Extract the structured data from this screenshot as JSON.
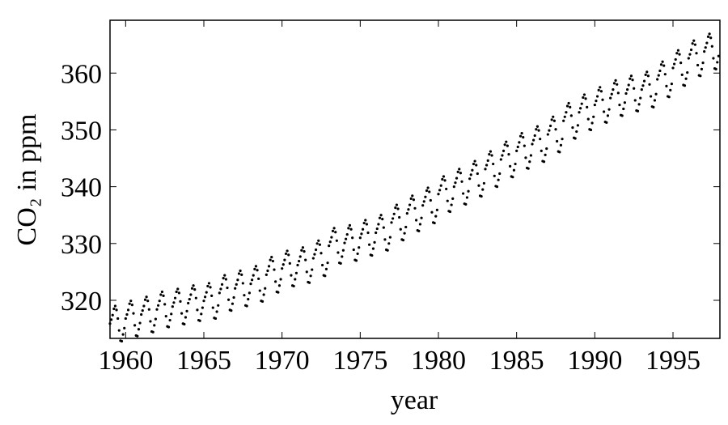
{
  "chart_data": {
    "type": "scatter",
    "xlabel": "year",
    "ylabel": "CO₂ in ppm",
    "color": "#000000",
    "xlim": [
      1959,
      1998
    ],
    "ylim": [
      313.3,
      369.3
    ],
    "xticks": [
      1960,
      1965,
      1970,
      1975,
      1980,
      1985,
      1990,
      1995
    ],
    "yticks": [
      320,
      330,
      340,
      350,
      360
    ],
    "x": [
      1959,
      1959.083,
      1959.167,
      1959.25,
      1959.333,
      1959.417,
      1959.5,
      1959.583,
      1959.667,
      1959.75,
      1959.833,
      1959.917,
      1960,
      1960.083,
      1960.167,
      1960.25,
      1960.333,
      1960.417,
      1960.5,
      1960.583,
      1960.667,
      1960.75,
      1960.833,
      1960.917,
      1961,
      1961.083,
      1961.167,
      1961.25,
      1961.333,
      1961.417,
      1961.5,
      1961.583,
      1961.667,
      1961.75,
      1961.833,
      1961.917,
      1962,
      1962.083,
      1962.167,
      1962.25,
      1962.333,
      1962.417,
      1962.5,
      1962.583,
      1962.667,
      1962.75,
      1962.833,
      1962.917,
      1963,
      1963.083,
      1963.167,
      1963.25,
      1963.333,
      1963.417,
      1963.5,
      1963.583,
      1963.667,
      1963.75,
      1963.833,
      1963.917,
      1964,
      1964.083,
      1964.167,
      1964.25,
      1964.333,
      1964.417,
      1964.5,
      1964.583,
      1964.667,
      1964.75,
      1964.833,
      1964.917,
      1965,
      1965.083,
      1965.167,
      1965.25,
      1965.333,
      1965.417,
      1965.5,
      1965.583,
      1965.667,
      1965.75,
      1965.833,
      1965.917,
      1966,
      1966.083,
      1966.167,
      1966.25,
      1966.333,
      1966.417,
      1966.5,
      1966.583,
      1966.667,
      1966.75,
      1966.833,
      1966.917,
      1967,
      1967.083,
      1967.167,
      1967.25,
      1967.333,
      1967.417,
      1967.5,
      1967.583,
      1967.667,
      1967.75,
      1967.833,
      1967.917,
      1968,
      1968.083,
      1968.167,
      1968.25,
      1968.333,
      1968.417,
      1968.5,
      1968.583,
      1968.667,
      1968.75,
      1968.833,
      1968.917,
      1969,
      1969.083,
      1969.167,
      1969.25,
      1969.333,
      1969.417,
      1969.5,
      1969.583,
      1969.667,
      1969.75,
      1969.833,
      1969.917,
      1970,
      1970.083,
      1970.167,
      1970.25,
      1970.333,
      1970.417,
      1970.5,
      1970.583,
      1970.667,
      1970.75,
      1970.833,
      1970.917,
      1971,
      1971.083,
      1971.167,
      1971.25,
      1971.333,
      1971.417,
      1971.5,
      1971.583,
      1971.667,
      1971.75,
      1971.833,
      1971.917,
      1972,
      1972.083,
      1972.167,
      1972.25,
      1972.333,
      1972.417,
      1972.5,
      1972.583,
      1972.667,
      1972.75,
      1972.833,
      1972.917,
      1973,
      1973.083,
      1973.167,
      1973.25,
      1973.333,
      1973.417,
      1973.5,
      1973.583,
      1973.667,
      1973.75,
      1973.833,
      1973.917,
      1974,
      1974.083,
      1974.167,
      1974.25,
      1974.333,
      1974.417,
      1974.5,
      1974.583,
      1974.667,
      1974.75,
      1974.833,
      1974.917,
      1975,
      1975.083,
      1975.167,
      1975.25,
      1975.333,
      1975.417,
      1975.5,
      1975.583,
      1975.667,
      1975.75,
      1975.833,
      1975.917,
      1976,
      1976.083,
      1976.167,
      1976.25,
      1976.333,
      1976.417,
      1976.5,
      1976.583,
      1976.667,
      1976.75,
      1976.833,
      1976.917,
      1977,
      1977.083,
      1977.167,
      1977.25,
      1977.333,
      1977.417,
      1977.5,
      1977.583,
      1977.667,
      1977.75,
      1977.833,
      1977.917,
      1978,
      1978.083,
      1978.167,
      1978.25,
      1978.333,
      1978.417,
      1978.5,
      1978.583,
      1978.667,
      1978.75,
      1978.833,
      1978.917,
      1979,
      1979.083,
      1979.167,
      1979.25,
      1979.333,
      1979.417,
      1979.5,
      1979.583,
      1979.667,
      1979.75,
      1979.833,
      1979.917,
      1980,
      1980.083,
      1980.167,
      1980.25,
      1980.333,
      1980.417,
      1980.5,
      1980.583,
      1980.667,
      1980.75,
      1980.833,
      1980.917,
      1981,
      1981.083,
      1981.167,
      1981.25,
      1981.333,
      1981.417,
      1981.5,
      1981.583,
      1981.667,
      1981.75,
      1981.833,
      1981.917,
      1982,
      1982.083,
      1982.167,
      1982.25,
      1982.333,
      1982.417,
      1982.5,
      1982.583,
      1982.667,
      1982.75,
      1982.833,
      1982.917,
      1983,
      1983.083,
      1983.167,
      1983.25,
      1983.333,
      1983.417,
      1983.5,
      1983.583,
      1983.667,
      1983.75,
      1983.833,
      1983.917,
      1984,
      1984.083,
      1984.167,
      1984.25,
      1984.333,
      1984.417,
      1984.5,
      1984.583,
      1984.667,
      1984.75,
      1984.833,
      1984.917,
      1985,
      1985.083,
      1985.167,
      1985.25,
      1985.333,
      1985.417,
      1985.5,
      1985.583,
      1985.667,
      1985.75,
      1985.833,
      1985.917,
      1986,
      1986.083,
      1986.167,
      1986.25,
      1986.333,
      1986.417,
      1986.5,
      1986.583,
      1986.667,
      1986.75,
      1986.833,
      1986.917,
      1987,
      1987.083,
      1987.167,
      1987.25,
      1987.333,
      1987.417,
      1987.5,
      1987.583,
      1987.667,
      1987.75,
      1987.833,
      1987.917,
      1988,
      1988.083,
      1988.167,
      1988.25,
      1988.333,
      1988.417,
      1988.5,
      1988.583,
      1988.667,
      1988.75,
      1988.833,
      1988.917,
      1989,
      1989.083,
      1989.167,
      1989.25,
      1989.333,
      1989.417,
      1989.5,
      1989.583,
      1989.667,
      1989.75,
      1989.833,
      1989.917,
      1990,
      1990.083,
      1990.167,
      1990.25,
      1990.333,
      1990.417,
      1990.5,
      1990.583,
      1990.667,
      1990.75,
      1990.833,
      1990.917,
      1991,
      1991.083,
      1991.167,
      1991.25,
      1991.333,
      1991.417,
      1991.5,
      1991.583,
      1991.667,
      1991.75,
      1991.833,
      1991.917,
      1992,
      1992.083,
      1992.167,
      1992.25,
      1992.333,
      1992.417,
      1992.5,
      1992.583,
      1992.667,
      1992.75,
      1992.833,
      1992.917,
      1993,
      1993.083,
      1993.167,
      1993.25,
      1993.333,
      1993.417,
      1993.5,
      1993.583,
      1993.667,
      1993.75,
      1993.833,
      1993.917,
      1994,
      1994.083,
      1994.167,
      1994.25,
      1994.333,
      1994.417,
      1994.5,
      1994.583,
      1994.667,
      1994.75,
      1994.833,
      1994.917,
      1995,
      1995.083,
      1995.167,
      1995.25,
      1995.333,
      1995.417,
      1995.5,
      1995.583,
      1995.667,
      1995.75,
      1995.833,
      1995.917,
      1996,
      1996.083,
      1996.167,
      1996.25,
      1996.333,
      1996.417,
      1996.5,
      1996.583,
      1996.667,
      1996.75,
      1996.833,
      1996.917,
      1997,
      1997.083,
      1997.167,
      1997.25,
      1997.333,
      1997.417,
      1997.5,
      1997.583,
      1997.667,
      1997.75,
      1997.833,
      1997.917
    ],
    "values": [
      315.9,
      316.6,
      317.4,
      318.5,
      319.0,
      318.3,
      316.8,
      314.7,
      312.9,
      312.8,
      314.0,
      315.1,
      316.8,
      317.5,
      318.3,
      319.4,
      319.9,
      319.2,
      317.7,
      315.6,
      313.8,
      313.7,
      314.9,
      316.0,
      317.5,
      318.2,
      319.0,
      320.1,
      320.6,
      319.9,
      318.4,
      316.3,
      314.5,
      314.4,
      315.6,
      316.7,
      318.4,
      319.1,
      319.9,
      321.0,
      321.5,
      320.8,
      319.3,
      317.2,
      315.4,
      315.3,
      316.5,
      317.6,
      318.9,
      319.6,
      320.4,
      321.5,
      322.0,
      321.3,
      319.8,
      317.7,
      315.9,
      315.8,
      317.0,
      318.1,
      319.5,
      320.2,
      321.0,
      322.1,
      322.6,
      321.9,
      320.4,
      318.3,
      316.5,
      316.4,
      317.6,
      318.7,
      319.9,
      320.6,
      321.4,
      322.5,
      323.0,
      322.3,
      320.8,
      318.7,
      316.9,
      316.8,
      318.0,
      319.1,
      321.3,
      322.0,
      322.8,
      323.9,
      324.4,
      323.7,
      322.2,
      320.1,
      318.3,
      318.2,
      319.4,
      320.5,
      322.1,
      322.8,
      323.6,
      324.7,
      325.2,
      324.5,
      323.0,
      320.9,
      319.1,
      319.0,
      320.2,
      321.3,
      322.9,
      323.6,
      324.4,
      325.5,
      326.0,
      325.3,
      323.8,
      321.7,
      319.9,
      319.8,
      321.0,
      322.1,
      324.5,
      325.2,
      326.0,
      327.1,
      327.6,
      326.9,
      325.4,
      323.3,
      321.5,
      321.4,
      322.6,
      323.7,
      325.6,
      326.3,
      327.1,
      328.2,
      328.7,
      328.0,
      326.5,
      324.4,
      322.6,
      322.5,
      323.7,
      324.8,
      326.2,
      326.9,
      327.7,
      328.8,
      329.3,
      328.6,
      327.1,
      325.0,
      323.2,
      323.1,
      324.3,
      325.4,
      327.4,
      328.1,
      328.9,
      330.0,
      330.5,
      329.8,
      328.3,
      326.2,
      324.4,
      324.3,
      325.5,
      326.6,
      329.6,
      330.3,
      331.1,
      332.2,
      332.7,
      332.0,
      330.5,
      328.4,
      326.6,
      326.5,
      327.7,
      328.8,
      330.1,
      330.8,
      331.6,
      332.7,
      333.2,
      332.5,
      331.0,
      328.9,
      327.1,
      327.0,
      328.2,
      329.3,
      331.0,
      331.7,
      332.5,
      333.6,
      334.1,
      333.4,
      331.9,
      329.8,
      328.0,
      327.9,
      329.1,
      330.2,
      331.9,
      332.6,
      333.4,
      334.5,
      335.0,
      334.3,
      332.8,
      330.7,
      328.9,
      328.8,
      330.0,
      331.1,
      333.7,
      334.4,
      335.2,
      336.3,
      336.8,
      336.1,
      334.6,
      332.5,
      330.7,
      330.6,
      331.8,
      332.9,
      335.3,
      336.0,
      336.8,
      337.9,
      338.4,
      337.7,
      336.2,
      334.1,
      332.3,
      332.2,
      333.4,
      334.5,
      336.7,
      337.4,
      338.2,
      339.3,
      339.8,
      339.1,
      337.6,
      335.5,
      333.7,
      333.6,
      334.8,
      335.9,
      338.7,
      339.4,
      340.2,
      341.3,
      341.8,
      341.1,
      339.6,
      337.5,
      335.7,
      335.6,
      336.8,
      337.9,
      340.0,
      340.7,
      341.5,
      342.6,
      343.1,
      342.4,
      340.9,
      338.8,
      337.0,
      336.9,
      338.1,
      339.2,
      341.4,
      342.1,
      342.9,
      344.0,
      344.5,
      343.8,
      342.3,
      340.2,
      338.4,
      338.3,
      339.5,
      340.6,
      343.1,
      343.8,
      344.6,
      345.7,
      346.2,
      345.5,
      344.0,
      341.9,
      340.1,
      340.0,
      341.2,
      342.3,
      344.8,
      345.5,
      346.3,
      347.4,
      347.9,
      347.2,
      345.7,
      343.6,
      341.8,
      341.7,
      342.9,
      344.0,
      346.3,
      347.0,
      347.8,
      348.9,
      349.4,
      348.7,
      347.2,
      345.1,
      343.3,
      343.2,
      344.4,
      345.5,
      347.5,
      348.2,
      349.0,
      350.1,
      350.6,
      349.9,
      348.4,
      346.3,
      344.5,
      344.4,
      345.6,
      346.7,
      349.2,
      349.9,
      350.7,
      351.8,
      352.3,
      351.6,
      350.1,
      348.0,
      346.2,
      346.1,
      347.3,
      348.4,
      351.6,
      352.3,
      353.1,
      354.2,
      354.7,
      354.0,
      352.5,
      350.4,
      348.6,
      348.5,
      349.7,
      350.8,
      353.1,
      353.8,
      354.6,
      355.7,
      356.2,
      355.5,
      354.0,
      351.9,
      350.1,
      350.0,
      351.2,
      352.3,
      354.4,
      355.1,
      355.9,
      357.0,
      357.5,
      356.8,
      355.3,
      353.2,
      351.4,
      351.3,
      352.5,
      353.6,
      355.6,
      356.3,
      357.1,
      358.2,
      358.7,
      358.0,
      356.5,
      354.4,
      352.6,
      352.5,
      353.7,
      354.8,
      356.4,
      357.1,
      357.9,
      359.0,
      359.5,
      358.8,
      357.3,
      355.2,
      353.4,
      353.3,
      354.5,
      355.6,
      357.1,
      357.8,
      358.6,
      359.7,
      360.2,
      359.5,
      358.0,
      355.9,
      354.1,
      354.0,
      355.2,
      356.3,
      358.9,
      359.6,
      360.4,
      361.5,
      362.0,
      361.3,
      359.8,
      357.7,
      355.9,
      355.8,
      357.0,
      358.1,
      360.9,
      361.6,
      362.4,
      363.5,
      364.0,
      363.3,
      361.8,
      359.7,
      357.9,
      357.8,
      359.0,
      360.1,
      362.6,
      363.3,
      364.1,
      365.2,
      365.7,
      365.0,
      363.5,
      361.4,
      359.6,
      359.5,
      360.7,
      361.8,
      363.8,
      364.5,
      365.3,
      366.4,
      366.9,
      366.2,
      364.7,
      362.6,
      360.8,
      360.7,
      361.9,
      363.0
    ]
  }
}
